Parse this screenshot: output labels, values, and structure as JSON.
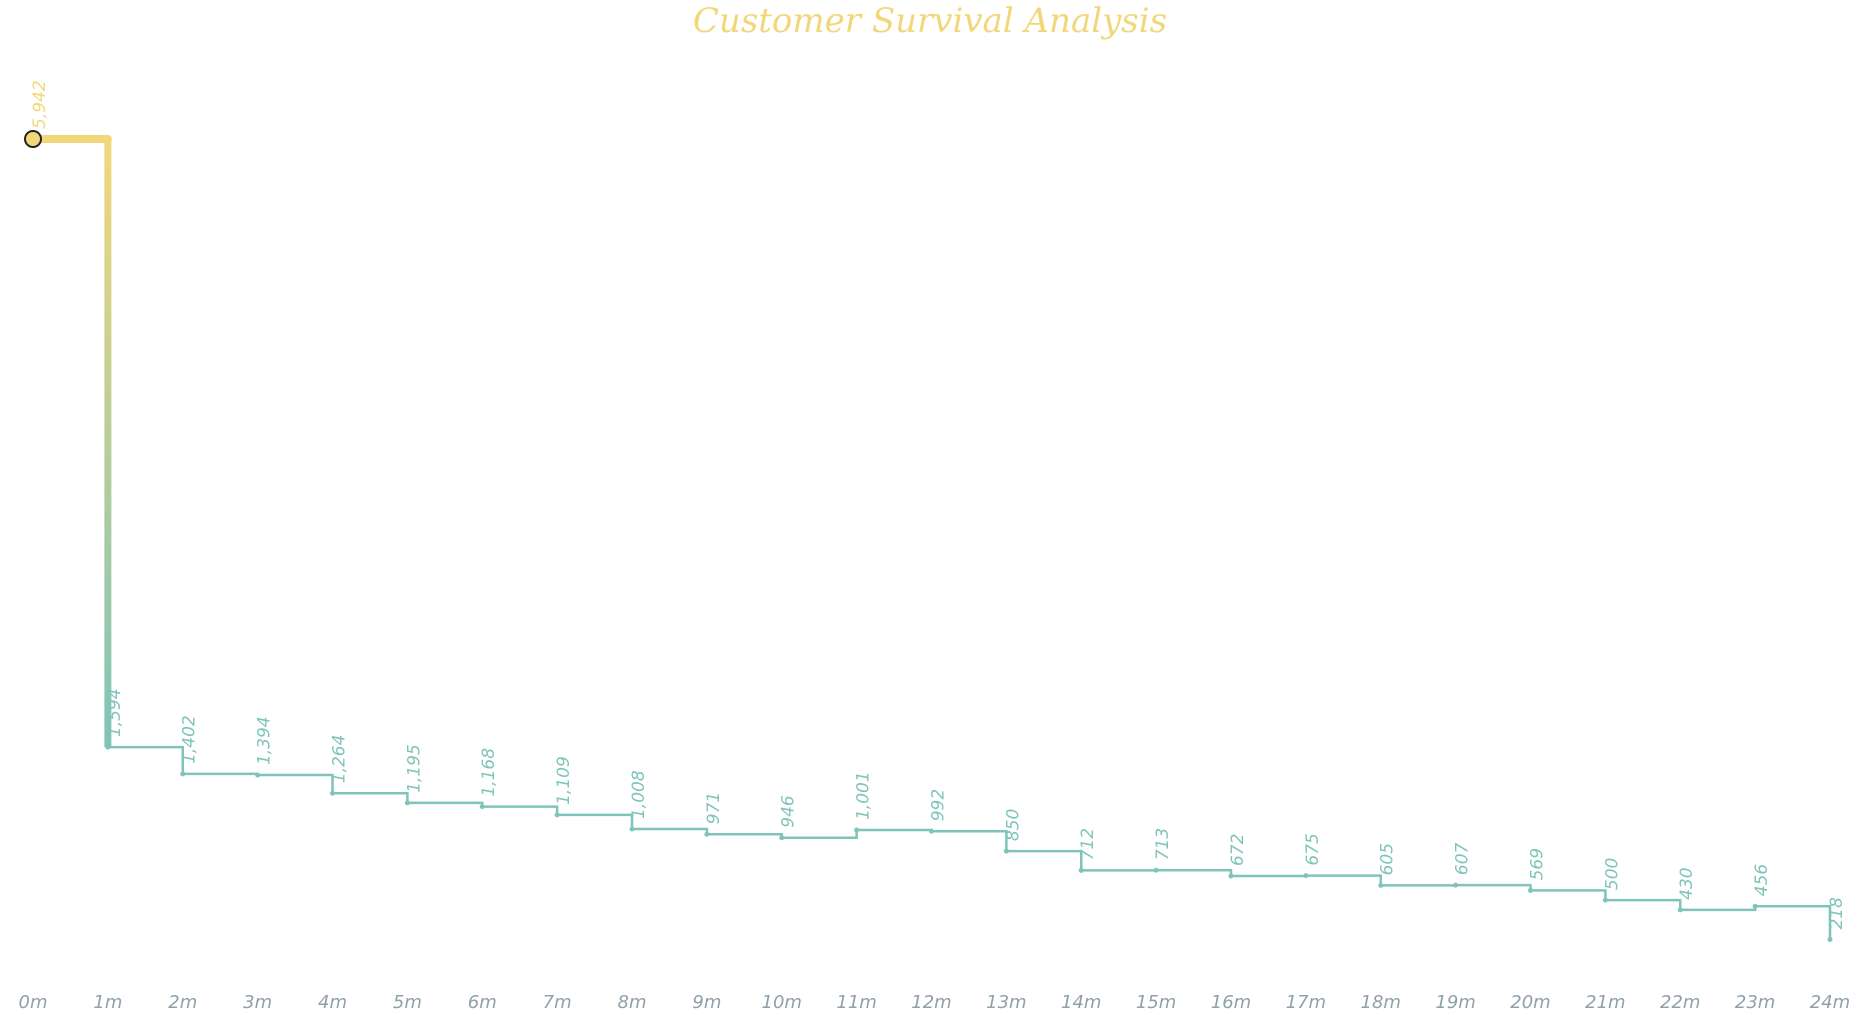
{
  "chart_data": {
    "type": "line",
    "title": "Customer Survival Analysis",
    "xlabel": "",
    "ylabel": "",
    "step": true,
    "grid": false,
    "categories": [
      "0m",
      "1m",
      "2m",
      "3m",
      "4m",
      "5m",
      "6m",
      "7m",
      "8m",
      "9m",
      "10m",
      "11m",
      "12m",
      "13m",
      "14m",
      "15m",
      "16m",
      "17m",
      "18m",
      "19m",
      "20m",
      "21m",
      "22m",
      "23m",
      "24m"
    ],
    "values": [
      5942,
      1594,
      1402,
      1394,
      1264,
      1195,
      1168,
      1109,
      1008,
      971,
      946,
      1001,
      992,
      850,
      712,
      713,
      672,
      675,
      605,
      607,
      569,
      500,
      430,
      456,
      218
    ],
    "data_labels": [
      "5,942",
      "1,594",
      "1,402",
      "1,394",
      "1,264",
      "1,195",
      "1,168",
      "1,109",
      "1,008",
      "971",
      "946",
      "1,001",
      "992",
      "850",
      "712",
      "713",
      "672",
      "675",
      "605",
      "607",
      "569",
      "500",
      "430",
      "456",
      "218"
    ],
    "ylim": [
      0,
      5942
    ],
    "colors": {
      "title": "#f2d77a",
      "start": "#f2d77a",
      "line": "#7fc4b8",
      "tick": "#8fa1a8"
    }
  }
}
